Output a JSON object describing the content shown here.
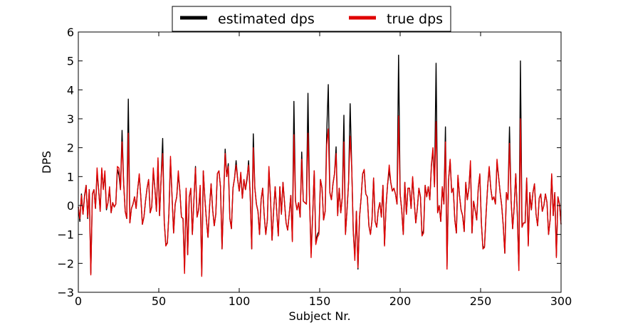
{
  "chart_data": {
    "type": "line",
    "title": "",
    "xlabel": "Subject Nr.",
    "ylabel": "DPS",
    "xlim": [
      0,
      300
    ],
    "ylim": [
      -3,
      6
    ],
    "xticks": [
      0,
      50,
      100,
      150,
      200,
      250,
      300
    ],
    "yticks": [
      -3,
      -2,
      -1,
      0,
      1,
      2,
      3,
      4,
      5,
      6
    ],
    "grid": false,
    "legend": {
      "placement": "top-center",
      "columns": 2
    },
    "series": [
      {
        "name": "estimated dps",
        "color": "#000000",
        "values": [
          -0.05,
          -0.55,
          0.4,
          -0.3,
          0.35,
          0.7,
          -0.45,
          0.55,
          -2.35,
          0.4,
          0.55,
          -0.1,
          1.15,
          0.55,
          -0.2,
          1.25,
          0.6,
          1.1,
          -0.15,
          0.1,
          0.55,
          -0.25,
          0.1,
          -0.05,
          0.05,
          1.25,
          1.05,
          0.55,
          2.6,
          0.8,
          -0.2,
          -0.45,
          3.68,
          -0.6,
          -0.1,
          0.05,
          0.3,
          -0.1,
          0.55,
          1.05,
          0.3,
          -0.65,
          -0.4,
          0.15,
          0.6,
          0.9,
          -0.25,
          -0.05,
          1.2,
          0.6,
          -0.2,
          1.55,
          -0.35,
          0.95,
          2.32,
          -0.55,
          -1.35,
          -1.3,
          -0.25,
          1.6,
          0.3,
          -0.95,
          0.05,
          0.3,
          1.1,
          0.5,
          -0.4,
          -0.45,
          -2.25,
          0.5,
          -1.7,
          0.3,
          0.55,
          -1.0,
          0.2,
          1.35,
          -0.4,
          -0.15,
          0.6,
          -2.4,
          1.2,
          0.25,
          -0.5,
          -1.1,
          -0.05,
          0.75,
          -0.15,
          -0.7,
          -0.3,
          1.1,
          1.2,
          0.65,
          -1.5,
          0.3,
          1.95,
          1.0,
          1.45,
          -0.45,
          -0.8,
          0.6,
          0.95,
          1.55,
          0.9,
          0.5,
          1.1,
          0.25,
          0.9,
          0.55,
          0.9,
          1.55,
          0.4,
          -1.5,
          2.48,
          0.6,
          0.05,
          -0.2,
          -1.0,
          0.2,
          0.6,
          -0.35,
          -1.0,
          -0.5,
          1.25,
          0.3,
          -1.2,
          -0.2,
          0.65,
          -0.2,
          -1.05,
          0.65,
          -0.3,
          0.8,
          0.1,
          -0.6,
          -0.85,
          -0.3,
          0.35,
          -1.2,
          3.6,
          0.15,
          -0.15,
          0.1,
          -0.4,
          1.85,
          0.15,
          0.1,
          0.05,
          3.88,
          0.2,
          -1.65,
          -0.35,
          1.2,
          -1.25,
          -1.0,
          -0.9,
          0.9,
          0.6,
          -0.5,
          -0.2,
          2.5,
          4.18,
          0.45,
          0.2,
          0.75,
          1.1,
          2.03,
          -0.35,
          0.6,
          -0.25,
          0.3,
          3.12,
          -1.0,
          -0.15,
          0.8,
          3.52,
          1.35,
          -0.9,
          -1.75,
          -0.2,
          -2.2,
          -0.4,
          0.25,
          1.1,
          1.2,
          0.4,
          0.3,
          -0.7,
          -1.0,
          -0.5,
          0.95,
          -0.55,
          -0.75,
          -0.15,
          0.1,
          -0.4,
          0.7,
          -1.35,
          0.0,
          0.75,
          1.2,
          0.8,
          0.5,
          0.6,
          0.4,
          0.05,
          5.2,
          0.4,
          -0.15,
          -1.0,
          0.8,
          -0.3,
          0.6,
          0.6,
          -0.1,
          0.95,
          0.15,
          -0.6,
          -0.1,
          0.6,
          0.3,
          -1.05,
          -0.85,
          0.7,
          0.3,
          0.65,
          0.2,
          1.35,
          1.9,
          0.65,
          4.92,
          -0.25,
          0.0,
          -0.55,
          0.65,
          0.05,
          2.72,
          -2.1,
          0.9,
          1.55,
          0.45,
          0.6,
          -0.5,
          -0.95,
          1.0,
          0.35,
          -0.15,
          -0.35,
          -0.9,
          0.8,
          0.2,
          0.6,
          1.45,
          -0.95,
          0.15,
          -0.15,
          -0.5,
          0.6,
          1.05,
          -0.6,
          -1.5,
          -1.4,
          -0.3,
          0.65,
          1.3,
          0.6,
          0.2,
          0.3,
          0.05,
          1.5,
          1.0,
          0.45,
          0.0,
          -0.7,
          -1.65,
          0.45,
          0.2,
          2.72,
          0.2,
          -0.8,
          -0.05,
          1.1,
          -0.3,
          -2.2,
          5.0,
          -0.75,
          -0.6,
          -0.6,
          0.95,
          -1.35,
          0.45,
          -0.15,
          0.45,
          0.75,
          -0.3,
          -0.7,
          0.25,
          0.4,
          -0.2,
          0.0,
          0.4,
          0.1,
          -1.0,
          -0.5,
          1.05,
          -0.35,
          0.45,
          -1.75,
          0.3,
          0.05,
          -0.65
        ]
      },
      {
        "name": "true dps",
        "color": "#e00000",
        "values": [
          -0.05,
          -0.45,
          0.35,
          -0.3,
          0.3,
          0.7,
          -0.4,
          0.55,
          -2.4,
          0.4,
          0.55,
          -0.1,
          1.3,
          0.55,
          -0.2,
          1.3,
          0.55,
          1.2,
          -0.1,
          0.1,
          0.65,
          -0.25,
          0.1,
          -0.05,
          0.05,
          1.35,
          1.3,
          0.55,
          2.2,
          0.8,
          -0.2,
          -0.45,
          2.5,
          -0.6,
          -0.1,
          0.05,
          0.3,
          -0.1,
          0.55,
          1.1,
          0.3,
          -0.65,
          -0.4,
          0.15,
          0.6,
          0.9,
          -0.25,
          -0.05,
          1.3,
          0.6,
          -0.2,
          1.65,
          -0.35,
          0.95,
          1.8,
          -0.55,
          -1.4,
          -1.3,
          -0.25,
          1.7,
          0.3,
          -0.95,
          0.05,
          0.3,
          1.2,
          0.5,
          -0.4,
          -0.45,
          -2.35,
          0.6,
          -1.7,
          0.3,
          0.6,
          -1.0,
          0.2,
          1.3,
          -0.4,
          -0.15,
          0.7,
          -2.45,
          1.2,
          0.25,
          -0.5,
          -1.1,
          -0.05,
          0.75,
          -0.15,
          -0.7,
          -0.3,
          1.1,
          1.2,
          0.65,
          -1.5,
          0.3,
          1.8,
          1.0,
          1.35,
          -0.45,
          -0.8,
          0.6,
          0.95,
          1.4,
          0.9,
          0.5,
          1.15,
          0.25,
          0.9,
          0.55,
          1.0,
          1.4,
          0.4,
          -1.5,
          2.0,
          0.6,
          0.05,
          -0.2,
          -1.0,
          0.2,
          0.6,
          -0.35,
          -1.0,
          -0.5,
          1.35,
          0.3,
          -1.2,
          -0.2,
          0.65,
          -0.2,
          -1.05,
          0.65,
          -0.3,
          0.8,
          0.1,
          -0.6,
          -0.85,
          -0.3,
          0.35,
          -1.25,
          2.45,
          0.15,
          -0.15,
          0.1,
          -0.4,
          1.6,
          0.15,
          0.1,
          0.05,
          2.5,
          0.2,
          -1.8,
          -0.35,
          1.2,
          -1.35,
          -1.1,
          -1.0,
          0.9,
          0.6,
          -0.5,
          -0.2,
          2.1,
          2.65,
          0.45,
          0.2,
          0.75,
          1.1,
          1.8,
          -0.35,
          0.6,
          -0.25,
          0.3,
          2.2,
          -1.0,
          -0.15,
          0.8,
          2.4,
          1.35,
          -0.9,
          -1.9,
          -0.2,
          -2.15,
          -0.4,
          0.25,
          1.1,
          1.25,
          0.4,
          0.3,
          -0.7,
          -1.0,
          -0.5,
          0.95,
          -0.55,
          -0.75,
          -0.15,
          0.1,
          -0.4,
          0.7,
          -1.4,
          0.0,
          0.75,
          1.4,
          0.8,
          0.5,
          0.6,
          0.4,
          0.05,
          3.1,
          0.4,
          -0.15,
          -1.0,
          0.8,
          -0.3,
          0.6,
          0.6,
          -0.1,
          1.0,
          0.15,
          -0.6,
          -0.1,
          0.6,
          0.3,
          -1.05,
          -0.95,
          0.7,
          0.3,
          0.65,
          0.2,
          1.4,
          2.0,
          0.65,
          2.9,
          -0.25,
          0.0,
          -0.55,
          0.65,
          0.05,
          2.2,
          -2.2,
          0.9,
          1.6,
          0.45,
          0.6,
          -0.5,
          -0.95,
          1.05,
          0.35,
          -0.15,
          -0.35,
          -0.9,
          0.8,
          0.2,
          0.6,
          1.55,
          -0.95,
          0.15,
          -0.15,
          -0.5,
          0.6,
          1.1,
          -0.6,
          -1.5,
          -1.45,
          -0.3,
          0.65,
          1.35,
          0.6,
          0.2,
          0.3,
          0.05,
          1.6,
          1.0,
          0.45,
          0.0,
          -0.7,
          -1.65,
          0.45,
          0.2,
          2.15,
          0.2,
          -0.8,
          -0.05,
          1.1,
          -0.3,
          -2.25,
          3.0,
          -0.75,
          -0.6,
          -0.6,
          0.95,
          -1.4,
          0.45,
          -0.15,
          0.45,
          0.75,
          -0.3,
          -0.7,
          0.25,
          0.4,
          -0.2,
          0.0,
          0.4,
          0.1,
          -1.0,
          -0.5,
          1.1,
          -0.35,
          0.45,
          -1.8,
          0.3,
          0.05,
          -0.65
        ]
      }
    ]
  }
}
